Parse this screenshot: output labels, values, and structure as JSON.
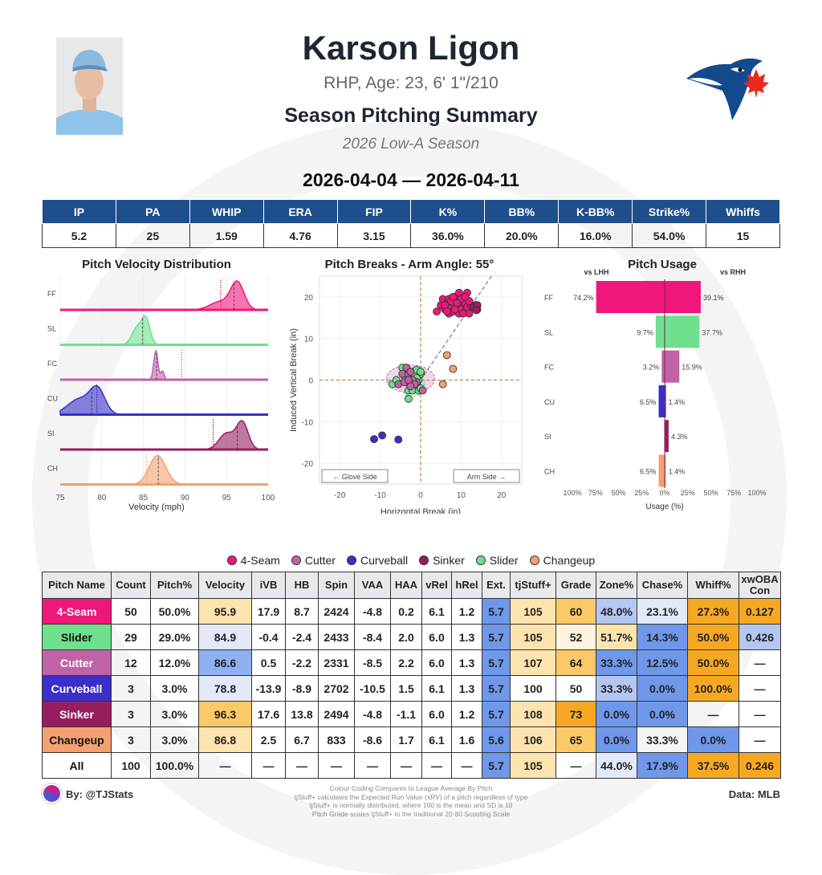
{
  "header": {
    "name": "Karson Ligon",
    "bio": "RHP, Age: 23, 6' 1\"/210",
    "title": "Season Pitching Summary",
    "season": "2026 Low-A Season",
    "dates": "2026-04-04 — 2026-04-11"
  },
  "stats": {
    "headers": [
      "IP",
      "PA",
      "WHIP",
      "ERA",
      "FIP",
      "K%",
      "BB%",
      "K-BB%",
      "Strike%",
      "Whiffs"
    ],
    "values": [
      "5.2",
      "25",
      "1.59",
      "4.76",
      "3.15",
      "36.0%",
      "20.0%",
      "16.0%",
      "54.0%",
      "15"
    ]
  },
  "pitch_colors": {
    "FF": "#f0177a",
    "SL": "#6ee08e",
    "FC": "#c062a6",
    "CU": "#3a2fc8",
    "SI": "#961e5e",
    "CH": "#f4a070"
  },
  "chart_data": [
    {
      "type": "area",
      "title": "Pitch Velocity Distribution",
      "xlabel": "Velocity (mph)",
      "xlim": [
        75,
        100
      ],
      "xticks": [
        "75",
        "80",
        "85",
        "90",
        "95",
        "100"
      ],
      "series": [
        {
          "name": "FF",
          "mean": 95.9,
          "league_avg": 94.3,
          "components": [
            [
              96.3,
              0.8,
              1
            ],
            [
              94.2,
              1.2,
              0.3
            ]
          ]
        },
        {
          "name": "SL",
          "mean": 84.9,
          "league_avg": 85.0,
          "components": [
            [
              85.3,
              0.5,
              1
            ],
            [
              84.2,
              0.6,
              0.65
            ]
          ]
        },
        {
          "name": "FC",
          "mean": 86.6,
          "league_avg": 89.6,
          "components": [
            [
              86.5,
              0.25,
              1
            ],
            [
              87.3,
              0.2,
              0.3
            ]
          ]
        },
        {
          "name": "CU",
          "mean": 78.8,
          "league_avg": 79.4,
          "components": [
            [
              79.5,
              0.9,
              1
            ],
            [
              77.3,
              1.4,
              0.65
            ]
          ]
        },
        {
          "name": "SI",
          "mean": 96.3,
          "league_avg": 93.4,
          "components": [
            [
              96.9,
              0.7,
              1
            ],
            [
              95.0,
              0.9,
              0.6
            ]
          ]
        },
        {
          "name": "CH",
          "mean": 86.8,
          "league_avg": 85.4,
          "components": [
            [
              86.7,
              1.0,
              1
            ]
          ]
        }
      ]
    },
    {
      "type": "scatter",
      "title": "Pitch Breaks - Arm Angle: 55°",
      "xlabel": "Horizontal Break (in)",
      "ylabel": "Induced Vertical Break (in)",
      "xlim": [
        -25,
        25
      ],
      "ylim": [
        -25,
        25
      ],
      "xticks": [
        "-20",
        "-10",
        "0",
        "10",
        "20"
      ],
      "yticks": [
        "20",
        "10",
        "0",
        "-10",
        "-20"
      ],
      "arm_angle": 55,
      "glove_label": "← Glove Side",
      "arm_label": "Arm Side →",
      "series": [
        {
          "name": "FF",
          "points": [
            [
              4,
              16.5
            ],
            [
              5,
              18
            ],
            [
              5.5,
              19.5
            ],
            [
              6,
              17
            ],
            [
              6.5,
              18.5
            ],
            [
              7,
              16
            ],
            [
              7,
              19.5
            ],
            [
              7.5,
              17.5
            ],
            [
              8,
              18.5
            ],
            [
              8,
              16.5
            ],
            [
              8.5,
              20
            ],
            [
              9,
              17.5
            ],
            [
              9,
              19
            ],
            [
              9.5,
              16
            ],
            [
              9.5,
              21
            ],
            [
              10,
              18
            ],
            [
              10,
              17
            ],
            [
              10.5,
              19.5
            ],
            [
              11,
              16.5
            ],
            [
              11,
              18.5
            ],
            [
              11.5,
              21
            ],
            [
              11.5,
              17.5
            ],
            [
              12,
              16
            ],
            [
              12.5,
              18
            ],
            [
              13,
              17.5
            ],
            [
              13.5,
              18
            ],
            [
              14,
              17
            ],
            [
              14,
              18
            ],
            [
              6,
              18
            ],
            [
              7.5,
              19
            ],
            [
              8.5,
              17
            ],
            [
              10,
              19.5
            ],
            [
              10.5,
              16
            ],
            [
              12,
              19
            ],
            [
              9,
              18.5
            ],
            [
              6.5,
              16.5
            ],
            [
              11,
              20
            ],
            [
              8,
              20
            ]
          ]
        },
        {
          "name": "SL",
          "points": [
            [
              -7,
              -1
            ],
            [
              -6,
              0
            ],
            [
              -4.5,
              3
            ],
            [
              -4,
              1
            ],
            [
              -3.5,
              -0.5
            ],
            [
              -3,
              -2.5
            ],
            [
              -3,
              -4.5
            ],
            [
              -2.5,
              0.5
            ],
            [
              -2.5,
              -1.5
            ],
            [
              -2,
              2
            ],
            [
              -2,
              -2.5
            ],
            [
              -1.5,
              1
            ],
            [
              -1.5,
              -0.5
            ],
            [
              -1,
              2.5
            ],
            [
              -1,
              -1
            ],
            [
              -0.5,
              0
            ],
            [
              -0.5,
              -2.5
            ],
            [
              0,
              1.5
            ],
            [
              0,
              -2
            ],
            [
              -3.5,
              1.5
            ],
            [
              -2,
              -1
            ],
            [
              -1,
              0.5
            ],
            [
              0,
              2
            ]
          ]
        },
        {
          "name": "FC",
          "points": [
            [
              -5.5,
              -1
            ],
            [
              -4.5,
              1.5
            ],
            [
              -3.5,
              3
            ],
            [
              -3,
              1.5
            ],
            [
              -2.5,
              2
            ],
            [
              -1,
              -0.5
            ],
            [
              0.5,
              -2.5
            ],
            [
              -4,
              -0.5
            ],
            [
              -2,
              0
            ],
            [
              -1.5,
              -1
            ],
            [
              -3,
              0
            ],
            [
              -2.5,
              -1.5
            ]
          ]
        },
        {
          "name": "CU",
          "points": [
            [
              -11.5,
              -14.2
            ],
            [
              -9.5,
              -13.3
            ],
            [
              -5.5,
              -14.3
            ]
          ]
        },
        {
          "name": "SI",
          "points": [
            [
              13,
              17.5
            ],
            [
              14,
              18
            ],
            [
              13.8,
              16.8
            ]
          ]
        },
        {
          "name": "CH",
          "points": [
            [
              6.5,
              6
            ],
            [
              8,
              2.7
            ],
            [
              5.5,
              -1
            ]
          ]
        }
      ]
    },
    {
      "type": "bar",
      "title": "Pitch Usage",
      "xlabel": "Usage (%)",
      "left_label": "vs LHH",
      "right_label": "vs RHH",
      "xticks": [
        "100%",
        "75%",
        "50%",
        "25%",
        "0%",
        "25%",
        "50%",
        "75%",
        "100%"
      ],
      "categories": [
        "FF",
        "SL",
        "FC",
        "CU",
        "SI",
        "CH"
      ],
      "series": [
        {
          "name": "vs LHH",
          "values": [
            74.2,
            9.7,
            3.2,
            6.5,
            0,
            6.5
          ],
          "labels": [
            "74.2%",
            "9.7%",
            "3.2%",
            "6.5%",
            "",
            "6.5%"
          ]
        },
        {
          "name": "vs RHH",
          "values": [
            39.1,
            37.7,
            15.9,
            1.4,
            4.3,
            1.4
          ],
          "labels": [
            "39.1%",
            "37.7%",
            "15.9%",
            "1.4%",
            "4.3%",
            "1.4%"
          ]
        }
      ]
    }
  ],
  "legend": [
    {
      "label": "4-Seam",
      "code": "FF"
    },
    {
      "label": "Cutter",
      "code": "FC"
    },
    {
      "label": "Curveball",
      "code": "CU"
    },
    {
      "label": "Sinker",
      "code": "SI"
    },
    {
      "label": "Slider",
      "code": "SL"
    },
    {
      "label": "Changeup",
      "code": "CH"
    }
  ],
  "table": {
    "headers": [
      "Pitch Name",
      "Count",
      "Pitch%",
      "Velocity",
      "iVB",
      "HB",
      "Spin",
      "VAA",
      "HAA",
      "vRel",
      "hRel",
      "Ext.",
      "tjStuff+",
      "Grade",
      "Zone%",
      "Chase%",
      "Whiff%",
      "xwOBA Con"
    ],
    "rows": [
      {
        "code": "FF",
        "text": "#ffffff",
        "cells": [
          "4-Seam",
          "50",
          "50.0%",
          "95.9",
          "17.9",
          "8.7",
          "2424",
          "-4.8",
          "0.2",
          "6.1",
          "1.2",
          "5.7",
          "105",
          "60",
          "48.0%",
          "23.1%",
          "27.3%",
          "0.127"
        ],
        "colors": {
          "3": "#fde4ae",
          "11": "#6f98ea",
          "12": "#fde4ae",
          "13": "#fbc968",
          "14": "#b3c7f2",
          "15": "#e3e9f8",
          "16": "#f7a823",
          "17": "#f7a823"
        }
      },
      {
        "code": "SL",
        "text": "#111111",
        "cells": [
          "Slider",
          "29",
          "29.0%",
          "84.9",
          "-0.4",
          "-2.4",
          "2433",
          "-8.4",
          "2.0",
          "6.0",
          "1.3",
          "5.7",
          "105",
          "52",
          "51.7%",
          "14.3%",
          "50.0%",
          "0.426"
        ],
        "colors": {
          "3": "#e3e9f8",
          "11": "#6f98ea",
          "12": "#fde4ae",
          "13": "#fef3dc",
          "14": "#fde4ae",
          "15": "#6f98ea",
          "16": "#f7a823",
          "17": "#b3c7f2"
        }
      },
      {
        "code": "FC",
        "text": "#ffffff",
        "cells": [
          "Cutter",
          "12",
          "12.0%",
          "86.6",
          "0.5",
          "-2.2",
          "2331",
          "-8.5",
          "2.2",
          "6.0",
          "1.3",
          "5.7",
          "107",
          "64",
          "33.3%",
          "12.5%",
          "50.0%",
          "—"
        ],
        "colors": {
          "3": "#8fb0f2",
          "11": "#6f98ea",
          "12": "#fde4ae",
          "13": "#fbc968",
          "14": "#6f98ea",
          "15": "#6f98ea",
          "16": "#f7a823"
        }
      },
      {
        "code": "CU",
        "text": "#ffffff",
        "cells": [
          "Curveball",
          "3",
          "3.0%",
          "78.8",
          "-13.9",
          "-8.9",
          "2702",
          "-10.5",
          "1.5",
          "6.1",
          "1.3",
          "5.7",
          "100",
          "50",
          "33.3%",
          "0.0%",
          "100.0%",
          "—"
        ],
        "colors": {
          "3": "#e3e9f8",
          "11": "#6f98ea",
          "14": "#b3c7f2",
          "15": "#6f98ea",
          "16": "#f7a823"
        }
      },
      {
        "code": "SI",
        "text": "#ffffff",
        "cells": [
          "Sinker",
          "3",
          "3.0%",
          "96.3",
          "17.6",
          "13.8",
          "2494",
          "-4.8",
          "-1.1",
          "6.0",
          "1.2",
          "5.7",
          "108",
          "73",
          "0.0%",
          "0.0%",
          "—",
          "—"
        ],
        "colors": {
          "3": "#fbc968",
          "11": "#6f98ea",
          "12": "#fde4ae",
          "13": "#f7a823",
          "14": "#6f98ea",
          "15": "#6f98ea"
        }
      },
      {
        "code": "CH",
        "text": "#111111",
        "cells": [
          "Changeup",
          "3",
          "3.0%",
          "86.8",
          "2.5",
          "6.7",
          "833",
          "-8.6",
          "1.7",
          "6.1",
          "1.6",
          "5.6",
          "106",
          "65",
          "0.0%",
          "33.3%",
          "0.0%",
          "—"
        ],
        "colors": {
          "3": "#fde4ae",
          "11": "#6f98ea",
          "12": "#fde4ae",
          "13": "#fbc968",
          "14": "#6f98ea",
          "16": "#6f98ea"
        }
      },
      {
        "code": "ALL",
        "text": "#111111",
        "cells": [
          "All",
          "100",
          "100.0%",
          "—",
          "—",
          "—",
          "—",
          "—",
          "—",
          "—",
          "—",
          "5.7",
          "105",
          "—",
          "44.0%",
          "17.9%",
          "37.5%",
          "0.246"
        ],
        "colors": {
          "11": "#6f98ea",
          "12": "#fde4ae",
          "14": "#e3e9f8",
          "15": "#6f98ea",
          "16": "#f7a823",
          "17": "#f7a823"
        }
      }
    ]
  },
  "footer": {
    "by": "By: @TJStats",
    "data_source": "Data: MLB",
    "notes": [
      "Colour Coding Compares to League Average By Pitch",
      "tjStuff+ calculates the Expected Run Value (xRV) of a pitch regardless of type",
      "tjStuff+ is normally distributed, where 100 is the mean and SD is 10",
      "Pitch Grade scales tjStuff+ to the traditional 20-80 Scouting Scale"
    ]
  }
}
